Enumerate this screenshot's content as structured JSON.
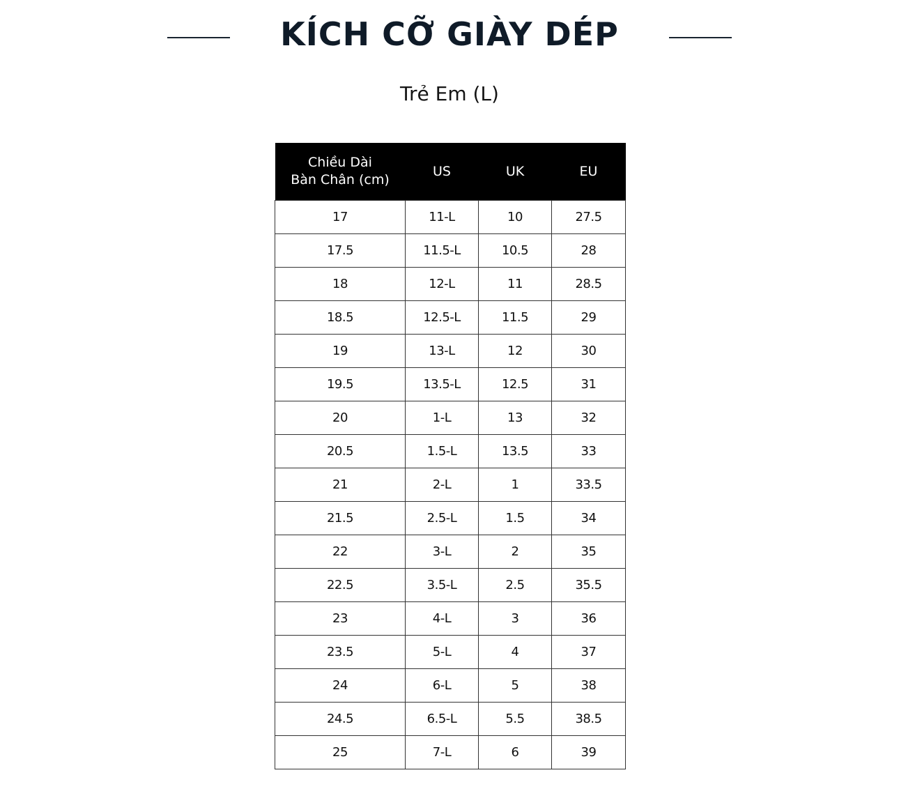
{
  "title": "KÍCH CỠ GIÀY DÉP",
  "subtitle": "Trẻ Em (L)",
  "table": {
    "headers": [
      "Chiều Dài\nBàn Chân (cm)",
      "US",
      "UK",
      "EU"
    ],
    "header_line1": "Chiều Dài",
    "header_line2": "Bàn Chân (cm)",
    "rows": [
      [
        "17",
        "11-L",
        "10",
        "27.5"
      ],
      [
        "17.5",
        "11.5-L",
        "10.5",
        "28"
      ],
      [
        "18",
        "12-L",
        "11",
        "28.5"
      ],
      [
        "18.5",
        "12.5-L",
        "11.5",
        "29"
      ],
      [
        "19",
        "13-L",
        "12",
        "30"
      ],
      [
        "19.5",
        "13.5-L",
        "12.5",
        "31"
      ],
      [
        "20",
        "1-L",
        "13",
        "32"
      ],
      [
        "20.5",
        "1.5-L",
        "13.5",
        "33"
      ],
      [
        "21",
        "2-L",
        "1",
        "33.5"
      ],
      [
        "21.5",
        "2.5-L",
        "1.5",
        "34"
      ],
      [
        "22",
        "3-L",
        "2",
        "35"
      ],
      [
        "22.5",
        "3.5-L",
        "2.5",
        "35.5"
      ],
      [
        "23",
        "4-L",
        "3",
        "36"
      ],
      [
        "23.5",
        "5-L",
        "4",
        "37"
      ],
      [
        "24",
        "6-L",
        "5",
        "38"
      ],
      [
        "24.5",
        "6.5-L",
        "5.5",
        "38.5"
      ],
      [
        "25",
        "7-L",
        "6",
        "39"
      ]
    ]
  },
  "colors": {
    "title": "#0f1b28",
    "header_bg": "#000000",
    "header_text": "#ffffff"
  }
}
